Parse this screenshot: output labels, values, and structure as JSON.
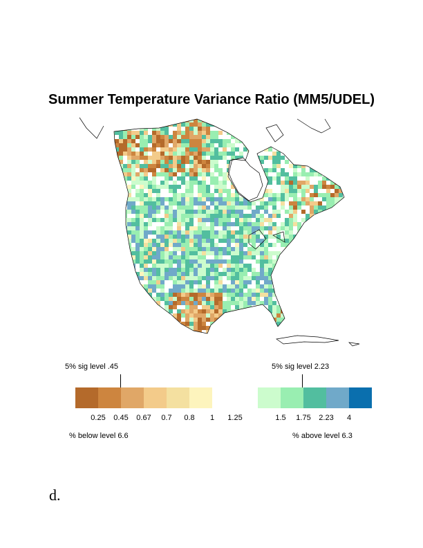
{
  "title": "Summer Temperature Variance Ratio (MM5/UDEL)",
  "colorbar": {
    "colors": [
      "#b46a2b",
      "#cd853f",
      "#e0a767",
      "#f3cb8a",
      "#f4e0a0",
      "#fdf4bd",
      "#ffffff",
      "#ccfccd",
      "#99eeb1",
      "#52be9f",
      "#70a9c9",
      "#0a6fae"
    ],
    "tick_labels": [
      "0.25",
      "0.45",
      "0.67",
      "0.7",
      "0.8",
      "1",
      "1.25",
      "1.5",
      "1.75",
      "2.23",
      "4"
    ],
    "sig_low_label": "5% sig level .45",
    "sig_high_label": "5% sig level 2.23",
    "below_label": "% below level 6.6",
    "above_label": "% above level 6.3"
  },
  "panel_label": "d."
}
